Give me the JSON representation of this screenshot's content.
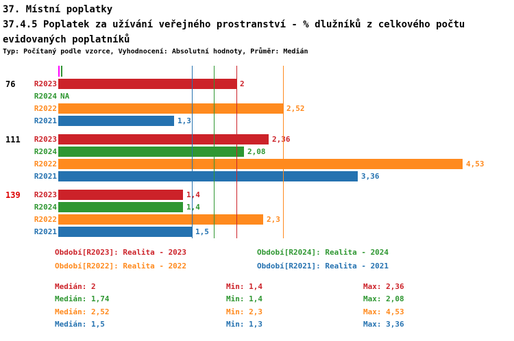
{
  "titles": {
    "line1": "37. Místní poplatky",
    "line2": "37.4.5 Poplatek za užívání veřejného prostranství - % dlužníků z celkového počtu",
    "line3": "evidovaných poplatníků",
    "subtitle": "Typ: Počítaný podle vzorce, Vyhodnocení: Absolutní hodnoty, Průměr: Medián"
  },
  "colors": {
    "R2023": "#cc2229",
    "R2024": "#2f9732",
    "R2022": "#ff8a1e",
    "R2021": "#2572b0",
    "alert": "#dd0000",
    "group_label": "#000000",
    "axis_marker": "#ff00ff"
  },
  "chart_data": {
    "type": "bar",
    "orientation": "horizontal",
    "value_axis": {
      "min": 0,
      "max_shown": 4.53
    },
    "series_order": [
      "R2023",
      "R2024",
      "R2022",
      "R2021"
    ],
    "group_labels": [
      "76",
      "111",
      "139"
    ],
    "alert_groups": [
      "139"
    ],
    "groups": [
      {
        "label": "76",
        "alert": false,
        "bars": [
          {
            "series": "R2023",
            "value": 2,
            "value_label": "2"
          },
          {
            "series": "R2024",
            "value": null,
            "value_label": "NA"
          },
          {
            "series": "R2022",
            "value": 2.52,
            "value_label": "2,52"
          },
          {
            "series": "R2021",
            "value": 1.3,
            "value_label": "1,3"
          }
        ]
      },
      {
        "label": "111",
        "alert": false,
        "bars": [
          {
            "series": "R2023",
            "value": 2.36,
            "value_label": "2,36"
          },
          {
            "series": "R2024",
            "value": 2.08,
            "value_label": "2,08"
          },
          {
            "series": "R2022",
            "value": 4.53,
            "value_label": "4,53"
          },
          {
            "series": "R2021",
            "value": 3.36,
            "value_label": "3,36"
          }
        ]
      },
      {
        "label": "139",
        "alert": true,
        "bars": [
          {
            "series": "R2023",
            "value": 1.4,
            "value_label": "1,4"
          },
          {
            "series": "R2024",
            "value": 1.4,
            "value_label": "1,4"
          },
          {
            "series": "R2022",
            "value": 2.3,
            "value_label": "2,3"
          },
          {
            "series": "R2021",
            "value": 1.5,
            "value_label": "1,5"
          }
        ]
      }
    ],
    "median_lines": [
      {
        "series": "R2021",
        "value": 1.5
      },
      {
        "series": "R2024",
        "value": 1.74
      },
      {
        "series": "R2023",
        "value": 2
      },
      {
        "series": "R2022",
        "value": 2.52
      }
    ],
    "stats_numeric": [
      {
        "series": "R2023",
        "median": 2,
        "min": 1.4,
        "max": 2.36
      },
      {
        "series": "R2024",
        "median": 1.74,
        "min": 1.4,
        "max": 2.08
      },
      {
        "series": "R2022",
        "median": 2.52,
        "min": 2.3,
        "max": 4.53
      },
      {
        "series": "R2021",
        "median": 1.5,
        "min": 1.3,
        "max": 3.36
      }
    ]
  },
  "legend": {
    "items": [
      {
        "series": "R2023",
        "label": "Období[R2023]: Realita - 2023"
      },
      {
        "series": "R2024",
        "label": "Období[R2024]: Realita - 2024"
      },
      {
        "series": "R2022",
        "label": "Období[R2022]: Realita - 2022"
      },
      {
        "series": "R2021",
        "label": "Období[R2021]: Realita - 2021"
      }
    ]
  },
  "stats": {
    "rows": [
      {
        "series": "R2023",
        "median": "Medián: 2",
        "min": "Min: 1,4",
        "max": "Max: 2,36"
      },
      {
        "series": "R2024",
        "median": "Medián: 1,74",
        "min": "Min: 1,4",
        "max": "Max: 2,08"
      },
      {
        "series": "R2022",
        "median": "Medián: 2,52",
        "min": "Min: 2,3",
        "max": "Max: 4,53"
      },
      {
        "series": "R2021",
        "median": "Medián: 1,5",
        "min": "Min: 1,3",
        "max": "Max: 3,36"
      }
    ]
  }
}
